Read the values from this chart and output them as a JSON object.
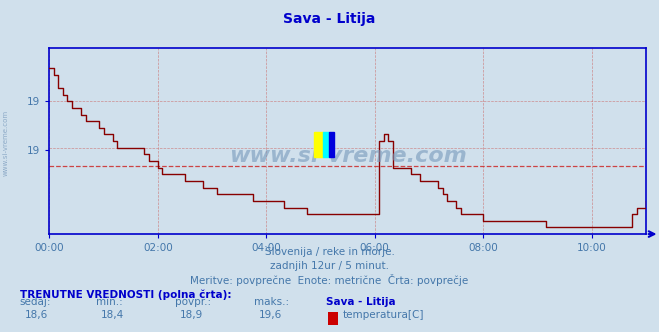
{
  "title": "Sava - Litija",
  "bg_color": "#d0e0ec",
  "plot_bg_color": "#d0e0ec",
  "line_color": "#880000",
  "avg_line_color": "#cc3333",
  "avg_value": 18.86,
  "ymin": 18.35,
  "ymax": 19.75,
  "xlabel_color": "#4477aa",
  "ylabel_color": "#4477aa",
  "title_color": "#0000cc",
  "grid_color": "#cc7777",
  "watermark": "www.si-vreme.com",
  "watermark_color": "#7799bb",
  "subtitle1": "Slovenija / reke in morje.",
  "subtitle2": "zadnjih 12ur / 5 minut.",
  "subtitle3": "Meritve: povprečne  Enote: metrične  Črta: povprečje",
  "footer_label": "TRENUTNE VREDNOSTI (polna črta):",
  "col_sedaj": "sedaj:",
  "col_min": "min.:",
  "col_povpr": "povpr.:",
  "col_maks": "maks.:",
  "col_station": "Sava - Litija",
  "val_sedaj": "18,6",
  "val_min": "18,4",
  "val_povpr": "18,9",
  "val_maks": "19,6",
  "legend_label": "temperatura[C]",
  "legend_color": "#cc0000",
  "axis_color": "#0000cc",
  "xtick_labels": [
    "00:00",
    "02:00",
    "04:00",
    "06:00",
    "08:00",
    "10:00"
  ],
  "ytick_vals": [
    19.0,
    19.0
  ],
  "ytick_positions": [
    19.35,
    18.98
  ],
  "ytick_labels": [
    "19",
    "19"
  ],
  "time_points": [
    0,
    5,
    10,
    15,
    20,
    25,
    30,
    35,
    40,
    45,
    50,
    55,
    60,
    65,
    70,
    75,
    80,
    85,
    90,
    95,
    100,
    105,
    110,
    115,
    120,
    125,
    130,
    135,
    140,
    145,
    150,
    155,
    160,
    165,
    170,
    175,
    180,
    185,
    190,
    195,
    200,
    205,
    210,
    215,
    220,
    225,
    230,
    235,
    240,
    245,
    250,
    255,
    260,
    265,
    270,
    275,
    280,
    285,
    290,
    295,
    300,
    305,
    310,
    315,
    320,
    325,
    330,
    335,
    340,
    345,
    350,
    355,
    360,
    365,
    370,
    375,
    380,
    385,
    390,
    395,
    400,
    405,
    410,
    415,
    420,
    425,
    430,
    435,
    440,
    445,
    450,
    455,
    460,
    465,
    470,
    475,
    480,
    485,
    490,
    495,
    500,
    505,
    510,
    515,
    520,
    525,
    530,
    535,
    540,
    545,
    550,
    555,
    560,
    565,
    570,
    575,
    580,
    585,
    590,
    595,
    600,
    605,
    610,
    615,
    620,
    625,
    630,
    635,
    640,
    645,
    650,
    655,
    660
  ],
  "temp_values": [
    19.6,
    19.55,
    19.45,
    19.4,
    19.35,
    19.3,
    19.3,
    19.25,
    19.2,
    19.2,
    19.2,
    19.15,
    19.1,
    19.1,
    19.05,
    19.0,
    19.0,
    19.0,
    19.0,
    19.0,
    19.0,
    18.95,
    18.9,
    18.9,
    18.85,
    18.8,
    18.8,
    18.8,
    18.8,
    18.8,
    18.75,
    18.75,
    18.75,
    18.75,
    18.7,
    18.7,
    18.7,
    18.65,
    18.65,
    18.65,
    18.65,
    18.65,
    18.65,
    18.65,
    18.65,
    18.6,
    18.6,
    18.6,
    18.6,
    18.6,
    18.6,
    18.6,
    18.55,
    18.55,
    18.55,
    18.55,
    18.55,
    18.5,
    18.5,
    18.5,
    18.5,
    18.5,
    18.5,
    18.5,
    18.5,
    18.5,
    18.5,
    18.5,
    18.5,
    18.5,
    18.5,
    18.5,
    18.5,
    19.05,
    19.1,
    19.05,
    18.85,
    18.85,
    18.85,
    18.85,
    18.8,
    18.8,
    18.75,
    18.75,
    18.75,
    18.75,
    18.7,
    18.65,
    18.6,
    18.6,
    18.55,
    18.5,
    18.5,
    18.5,
    18.5,
    18.5,
    18.45,
    18.45,
    18.45,
    18.45,
    18.45,
    18.45,
    18.45,
    18.45,
    18.45,
    18.45,
    18.45,
    18.45,
    18.45,
    18.45,
    18.4,
    18.4,
    18.4,
    18.4,
    18.4,
    18.4,
    18.4,
    18.4,
    18.4,
    18.4,
    18.4,
    18.4,
    18.4,
    18.4,
    18.4,
    18.4,
    18.4,
    18.4,
    18.4,
    18.5,
    18.55,
    18.55,
    18.6
  ]
}
